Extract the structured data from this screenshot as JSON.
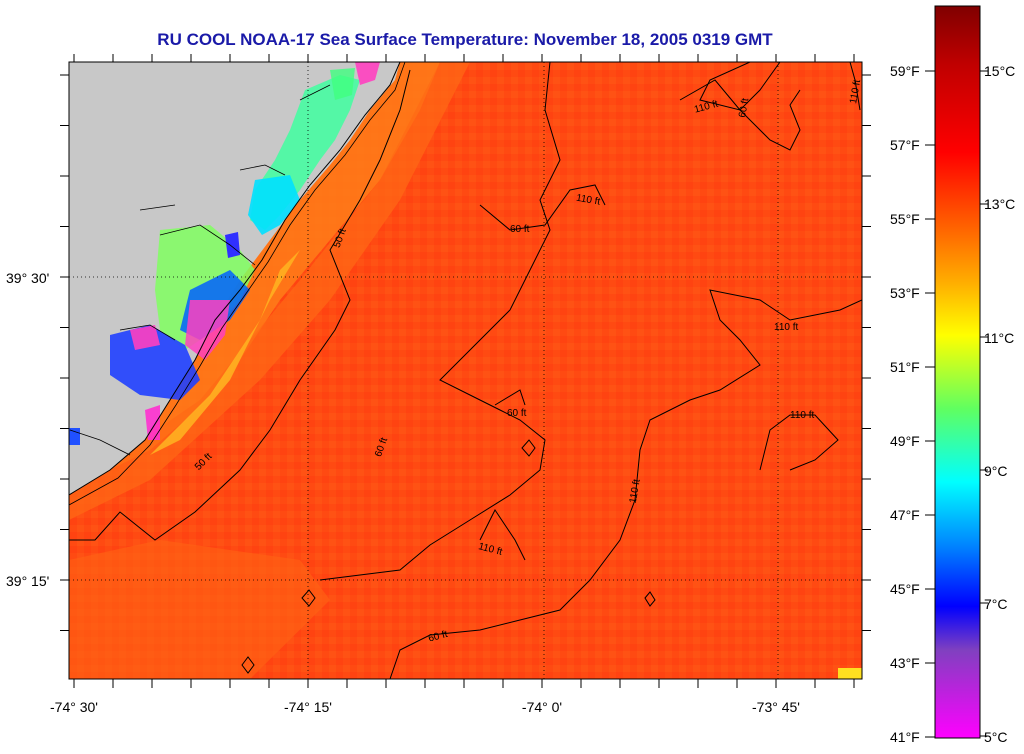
{
  "title": "RU COOL  NOAA-17  Sea Surface Temperature:  November 18, 2005 0319 GMT",
  "map": {
    "lon_ticks": [
      "-74° 30'",
      "-74° 15'",
      "-74° 0'",
      "-73° 45'"
    ],
    "lat_ticks": [
      "39° 30'",
      "39° 15'"
    ],
    "contour_labels": [
      "50 ft",
      "60 ft",
      "110 ft"
    ],
    "land_color": "#c8c8c8",
    "ocean_colors": [
      "#ff3a10",
      "#ff5a10",
      "#ff7a18"
    ]
  },
  "colorbar": {
    "fahrenheit": [
      "59°F",
      "57°F",
      "55°F",
      "53°F",
      "51°F",
      "49°F",
      "47°F",
      "45°F",
      "43°F",
      "41°F"
    ],
    "celsius": [
      "15°C",
      "13°C",
      "11°C",
      "9°C",
      "7°C",
      "5°C"
    ],
    "gradient_colors": [
      "#800000",
      "#c00000",
      "#ff0000",
      "#ff6000",
      "#ffa000",
      "#ffff00",
      "#80ff40",
      "#00ffff",
      "#0080ff",
      "#0000ff",
      "#8040c0",
      "#ff00ff"
    ]
  }
}
